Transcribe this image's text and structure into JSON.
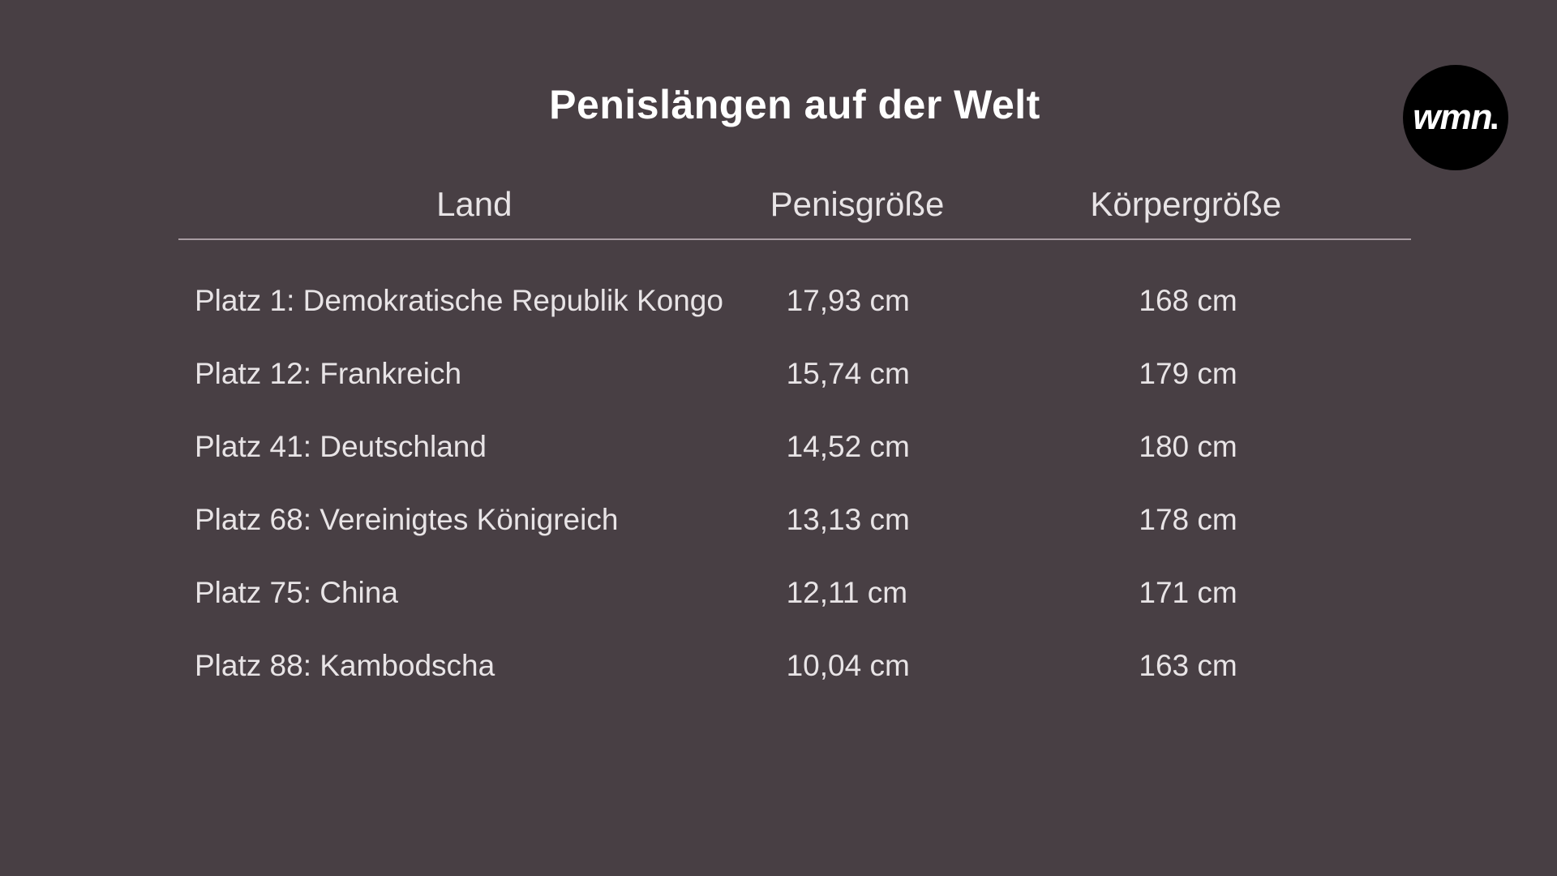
{
  "title": "Penislängen auf der Welt",
  "logo": {
    "text": "wmn",
    "dot": "."
  },
  "table": {
    "background_color": "#483f44",
    "text_color": "#e8e4e6",
    "title_color": "#ffffff",
    "divider_color": "#a89ca2",
    "title_fontsize": 50,
    "header_fontsize": 42,
    "cell_fontsize": 37,
    "columns": [
      "Land",
      "Penisgröße",
      "Körpergröße"
    ],
    "rows": [
      {
        "land": "Platz 1: Demokratische Republik Kongo",
        "penis": "17,93 cm",
        "body": "168 cm"
      },
      {
        "land": "Platz 12: Frankreich",
        "penis": "15,74 cm",
        "body": "179 cm"
      },
      {
        "land": "Platz 41: Deutschland",
        "penis": "14,52 cm",
        "body": "180 cm"
      },
      {
        "land": "Platz 68: Vereinigtes Königreich",
        "penis": "13,13 cm",
        "body": "178 cm"
      },
      {
        "land": "Platz 75: China",
        "penis": "12,11 cm",
        "body": "171 cm"
      },
      {
        "land": "Platz 88: Kambodscha",
        "penis": "10,04 cm",
        "body": "163 cm"
      }
    ]
  }
}
